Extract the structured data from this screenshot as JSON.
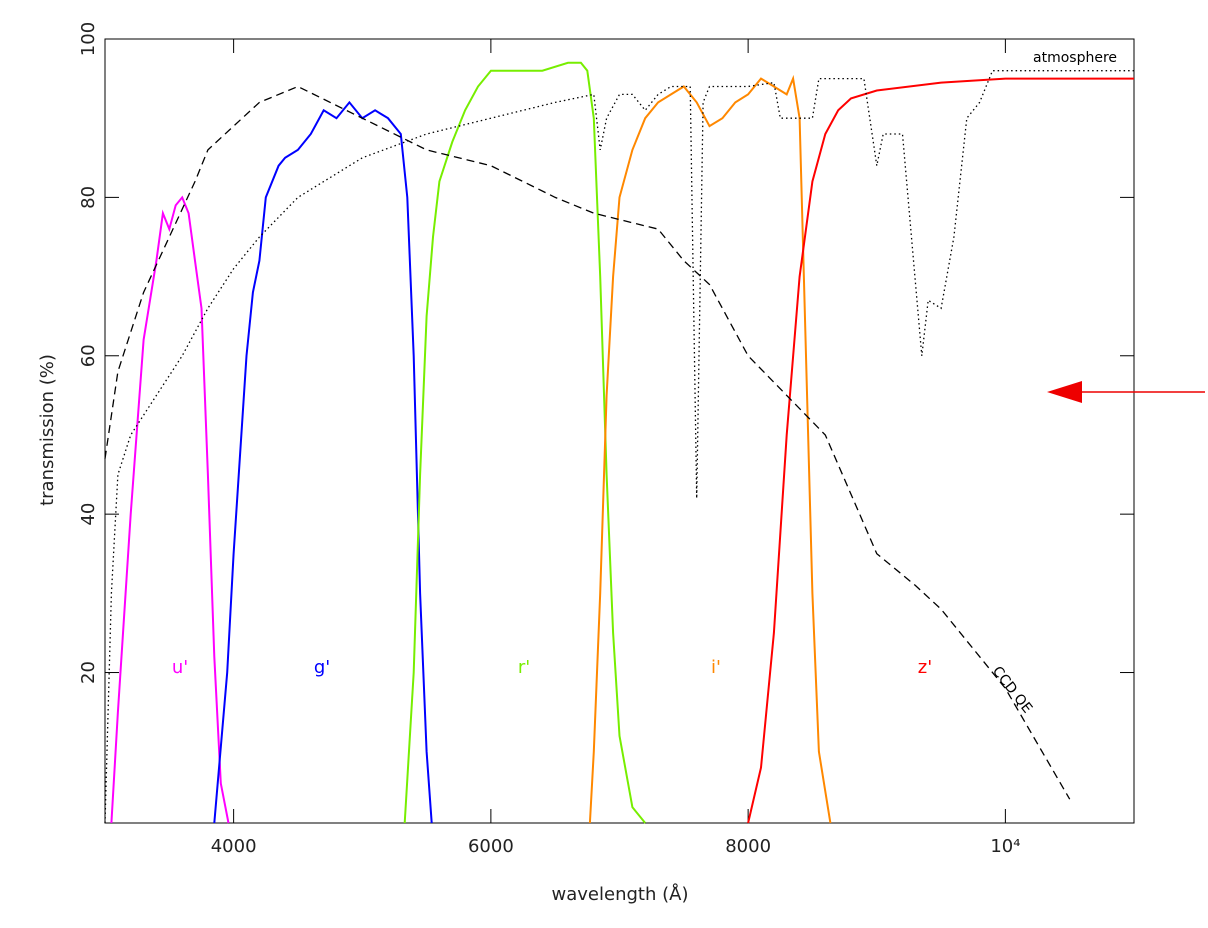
{
  "chart_data": {
    "type": "line",
    "x_label": "wavelength (Å)",
    "y_label": "transmission (%)",
    "xlim": [
      3000,
      11000
    ],
    "ylim": [
      1,
      100
    ],
    "xticks": [
      4000,
      6000,
      8000,
      {
        "value": 10000,
        "label": "10⁴"
      }
    ],
    "yticks": [
      20,
      40,
      60,
      80,
      100
    ],
    "series": [
      {
        "name": "u'",
        "color": "#ff00ff",
        "style": "solid",
        "x": [
          3050,
          3100,
          3200,
          3300,
          3400,
          3450,
          3500,
          3550,
          3600,
          3650,
          3700,
          3750,
          3800,
          3850,
          3900,
          3960
        ],
        "values": [
          1,
          15,
          40,
          62,
          72,
          78,
          76,
          79,
          80,
          78,
          72,
          66,
          45,
          22,
          6,
          1
        ]
      },
      {
        "name": "g'",
        "color": "#0000ff",
        "style": "solid",
        "x": [
          3850,
          3950,
          4000,
          4100,
          4150,
          4200,
          4250,
          4350,
          4400,
          4500,
          4600,
          4700,
          4800,
          4900,
          5000,
          5100,
          5200,
          5300,
          5350,
          5400,
          5450,
          5500,
          5540
        ],
        "values": [
          1,
          20,
          35,
          60,
          68,
          72,
          80,
          84,
          85,
          86,
          88,
          91,
          90,
          92,
          90,
          91,
          90,
          88,
          80,
          60,
          30,
          10,
          1
        ]
      },
      {
        "name": "r'",
        "color": "#77ee00",
        "style": "solid",
        "x": [
          5330,
          5400,
          5450,
          5500,
          5550,
          5600,
          5700,
          5800,
          5900,
          6000,
          6200,
          6400,
          6600,
          6700,
          6750,
          6800,
          6850,
          6900,
          6950,
          7000,
          7100,
          7200
        ],
        "values": [
          1,
          20,
          45,
          65,
          75,
          82,
          87,
          91,
          94,
          96,
          96,
          96,
          97,
          97,
          96,
          90,
          70,
          45,
          25,
          12,
          3,
          1
        ]
      },
      {
        "name": "i'",
        "color": "#ff8800",
        "style": "solid",
        "x": [
          6770,
          6800,
          6850,
          6900,
          6950,
          7000,
          7100,
          7200,
          7300,
          7400,
          7500,
          7600,
          7700,
          7800,
          7900,
          8000,
          8100,
          8200,
          8300,
          8350,
          8400,
          8450,
          8500,
          8550,
          8640
        ],
        "values": [
          1,
          10,
          30,
          55,
          70,
          80,
          86,
          90,
          92,
          93,
          94,
          92,
          89,
          90,
          92,
          93,
          95,
          94,
          93,
          95,
          90,
          60,
          30,
          10,
          1
        ]
      },
      {
        "name": "z'",
        "color": "#ff0000",
        "style": "solid",
        "x": [
          8000,
          8100,
          8200,
          8300,
          8400,
          8500,
          8600,
          8700,
          8800,
          9000,
          9500,
          10000,
          11000
        ],
        "values": [
          1,
          8,
          25,
          50,
          70,
          82,
          88,
          91,
          92.5,
          93.5,
          94.5,
          95,
          95
        ]
      },
      {
        "name": "atmosphere",
        "color": "#000000",
        "style": "dotted",
        "x": [
          3000,
          3050,
          3100,
          3200,
          3400,
          3600,
          3800,
          4000,
          4200,
          4500,
          5000,
          5500,
          6000,
          6500,
          6800,
          6850,
          6900,
          7000,
          7100,
          7200,
          7300,
          7400,
          7550,
          7600,
          7650,
          7700,
          8000,
          8200,
          8250,
          8500,
          8550,
          8900,
          9000,
          9050,
          9200,
          9350,
          9400,
          9500,
          9600,
          9700,
          9800,
          9900,
          11000
        ],
        "values": [
          1,
          30,
          45,
          50,
          55,
          60,
          66,
          71,
          75,
          80,
          85,
          88,
          90,
          92,
          93,
          86,
          90,
          93,
          93,
          91,
          93,
          94,
          94,
          42,
          92,
          94,
          94,
          94.5,
          90,
          90,
          95,
          95,
          84,
          88,
          88,
          60,
          67,
          66,
          75,
          90,
          92,
          96,
          96
        ]
      },
      {
        "name": "CCD QE",
        "color": "#000000",
        "style": "dashed",
        "x": [
          3000,
          3100,
          3300,
          3500,
          3700,
          3800,
          4000,
          4200,
          4500,
          5000,
          5500,
          6000,
          6500,
          6800,
          7300,
          7500,
          7700,
          8000,
          8300,
          8600,
          9000,
          9300,
          9500,
          10000,
          10500
        ],
        "values": [
          47,
          58,
          68,
          75,
          82,
          86,
          89,
          92,
          94,
          90,
          86,
          84,
          80,
          78,
          76,
          72,
          69,
          60,
          55,
          50,
          35,
          31,
          28,
          18,
          4
        ]
      }
    ]
  }
}
